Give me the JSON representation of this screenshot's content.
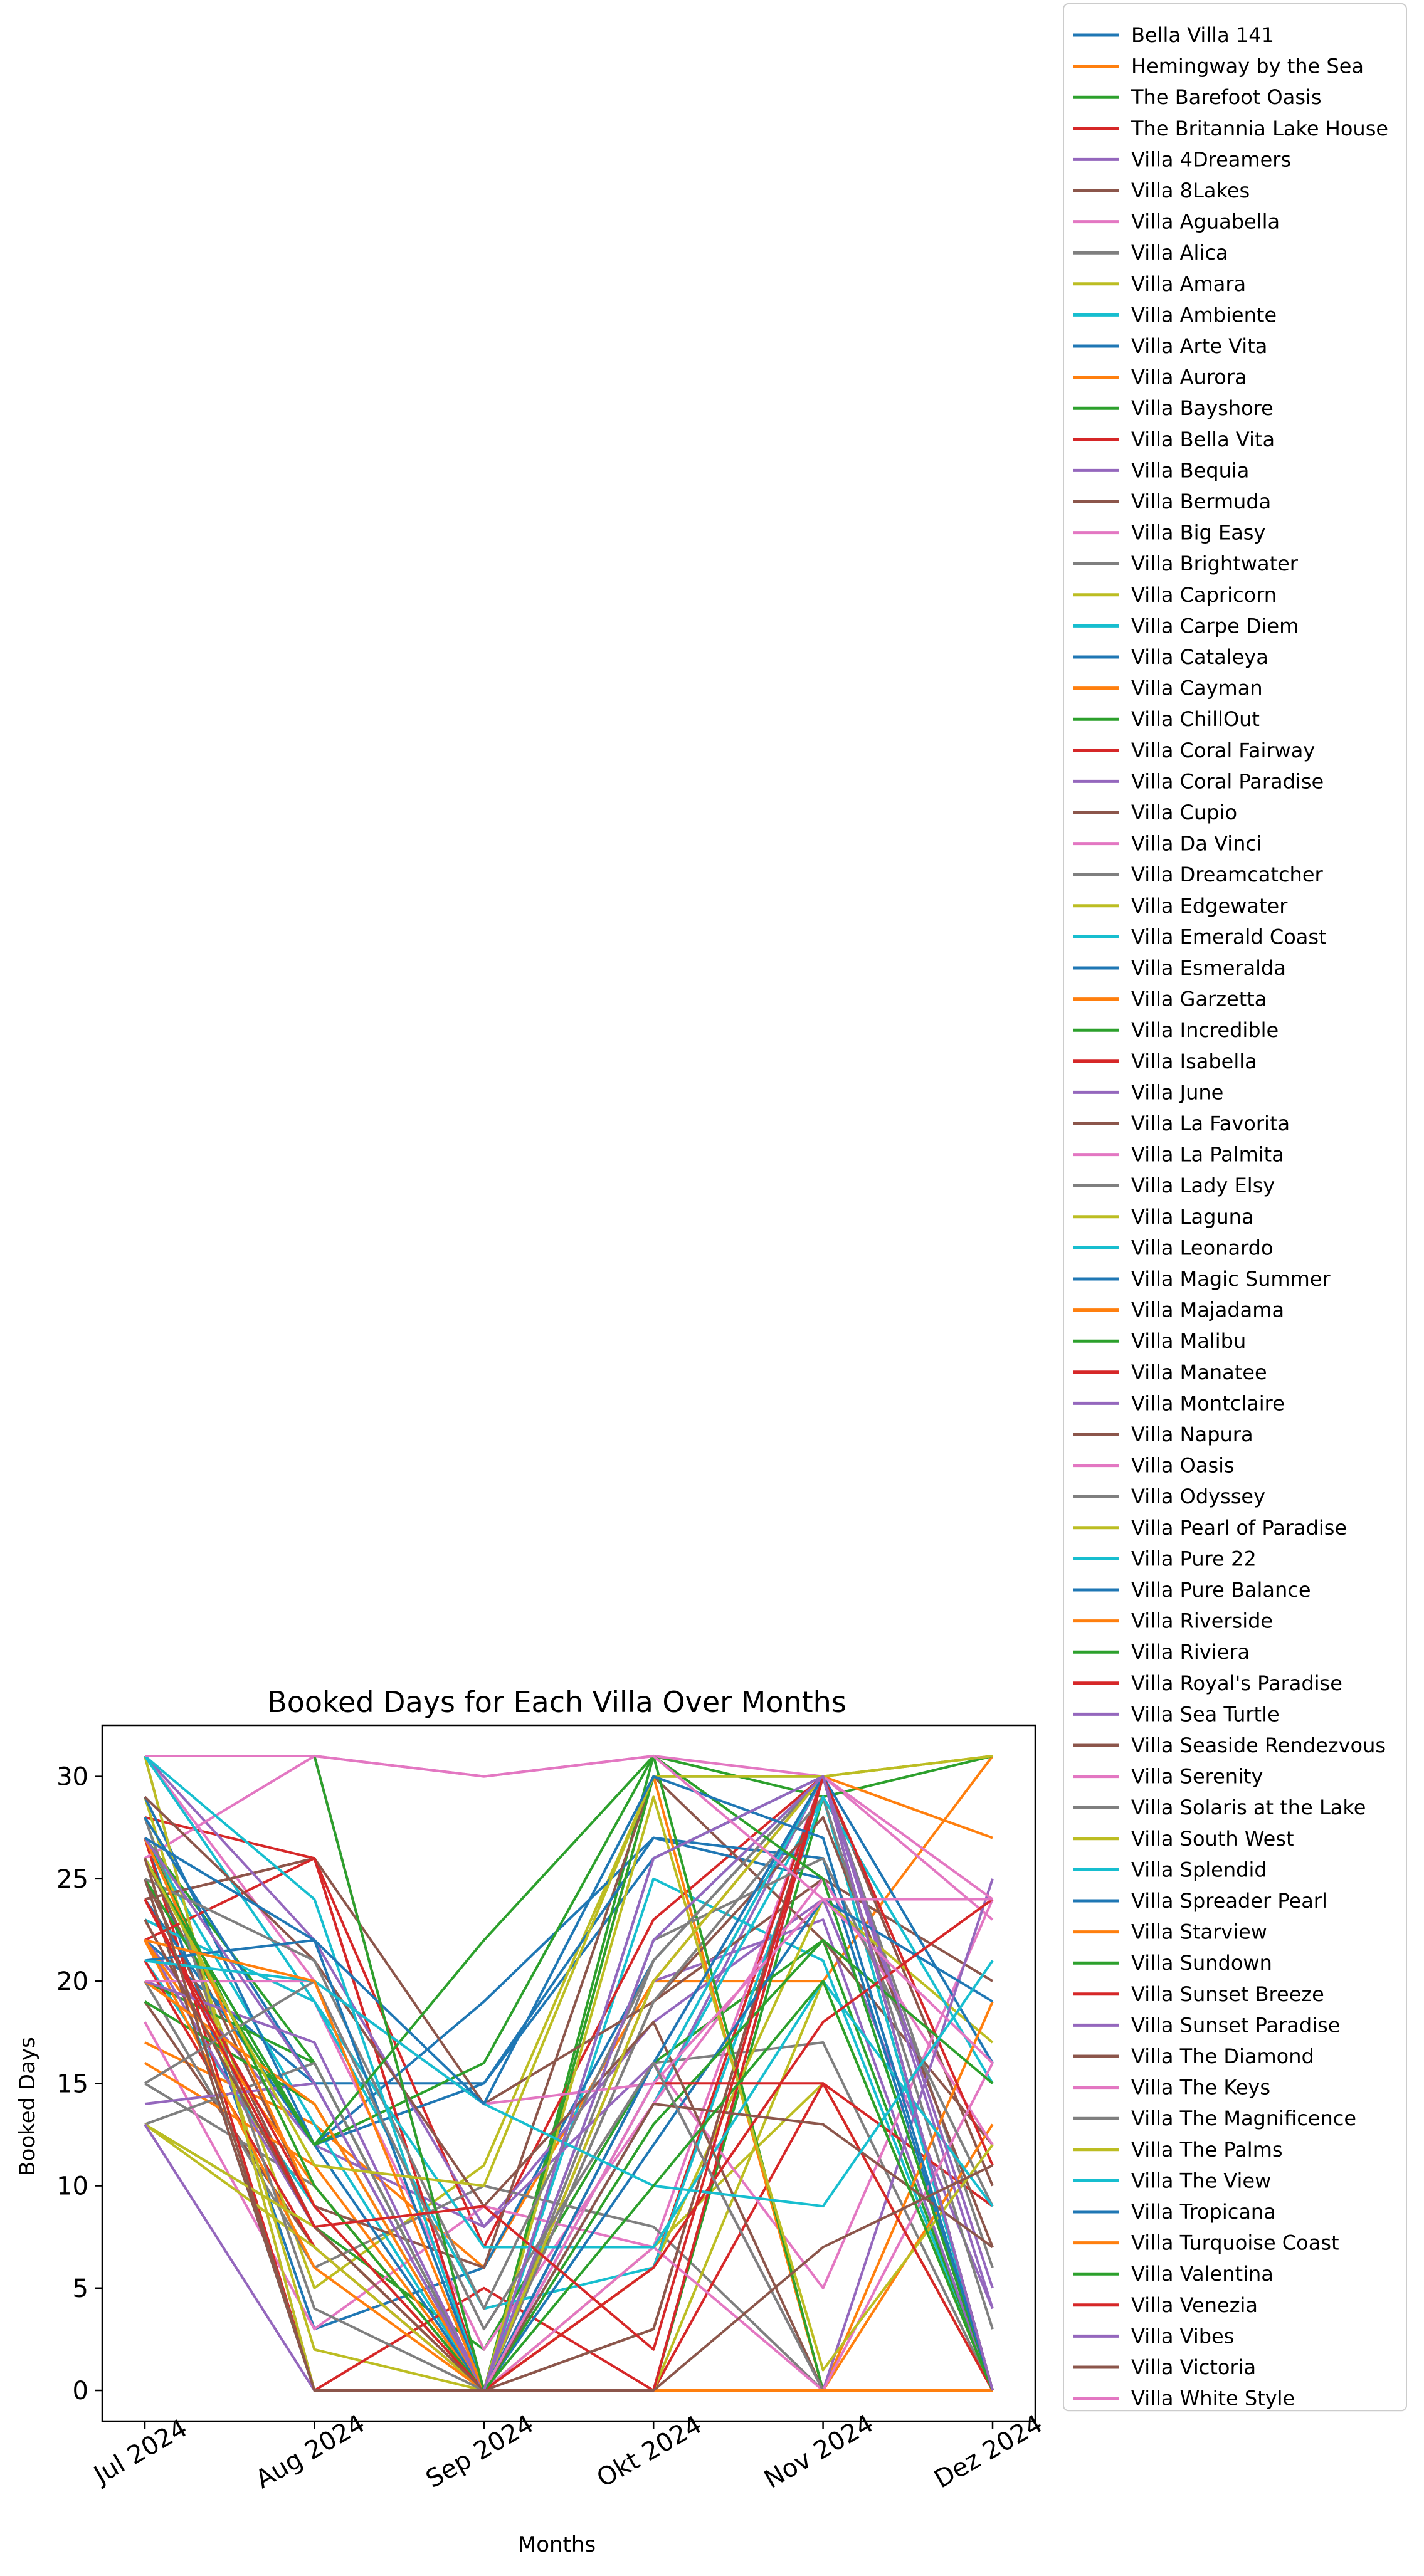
{
  "chart_data": {
    "type": "line",
    "title": "Booked Days for Each Villa Over Months",
    "xlabel": "Months",
    "ylabel": "Booked Days",
    "categories": [
      "Jul 2024",
      "Aug 2024",
      "Sep 2024",
      "Okt 2024",
      "Nov 2024",
      "Dez 2024"
    ],
    "ylim": [
      -1.5,
      32.5
    ],
    "yticks": [
      0,
      5,
      10,
      15,
      20,
      25,
      30
    ],
    "grid": false,
    "legend_placement": "outside right",
    "palette": [
      "#1f77b4",
      "#ff7f0e",
      "#2ca02c",
      "#d62728",
      "#9467bd",
      "#8c564b",
      "#e377c2",
      "#7f7f7f",
      "#bcbd22",
      "#17becf"
    ],
    "series": [
      {
        "name": "Bella Villa 141",
        "values": [
          22,
          15,
          15,
          26,
          30,
          0
        ]
      },
      {
        "name": "Hemingway by the Sea",
        "values": [
          17,
          13,
          6,
          20,
          20,
          31
        ]
      },
      {
        "name": "The Barefoot Oasis",
        "values": [
          27,
          16,
          0,
          31,
          29,
          0
        ]
      },
      {
        "name": "The Britannia Lake House",
        "values": [
          28,
          26,
          0,
          20,
          30,
          0
        ]
      },
      {
        "name": "Villa 4Dreamers",
        "values": [
          31,
          0,
          0,
          14,
          30,
          0
        ]
      },
      {
        "name": "Villa 8Lakes",
        "values": [
          19,
          7,
          0,
          3,
          30,
          10
        ]
      },
      {
        "name": "Villa Aguabella",
        "values": [
          31,
          31,
          30,
          31,
          30,
          23
        ]
      },
      {
        "name": "Villa Alica",
        "values": [
          15,
          10,
          0,
          16,
          17,
          0
        ]
      },
      {
        "name": "Villa Amara",
        "values": [
          28,
          5,
          11,
          30,
          30,
          31
        ]
      },
      {
        "name": "Villa Ambiente",
        "values": [
          21,
          9,
          0,
          25,
          21,
          0
        ]
      },
      {
        "name": "Villa Arte Vita",
        "values": [
          27,
          3,
          6,
          21,
          30,
          0
        ]
      },
      {
        "name": "Villa Aurora",
        "values": [
          23,
          8,
          0,
          0,
          0,
          0
        ]
      },
      {
        "name": "Villa Bayshore",
        "values": [
          13,
          8,
          2,
          16,
          22,
          0
        ]
      },
      {
        "name": "Villa Bella Vita",
        "values": [
          24,
          26,
          7,
          23,
          30,
          0
        ]
      },
      {
        "name": "Villa Bequia",
        "values": [
          22,
          12,
          8,
          18,
          24,
          4
        ]
      },
      {
        "name": "Villa Bermuda",
        "values": [
          25,
          8,
          0,
          19,
          25,
          20
        ]
      },
      {
        "name": "Villa Big Easy",
        "values": [
          18,
          3,
          9,
          7,
          30,
          0
        ]
      },
      {
        "name": "Villa Brightwater",
        "values": [
          20,
          6,
          10,
          8,
          0,
          0
        ]
      },
      {
        "name": "Villa Capricorn",
        "values": [
          29,
          2,
          0,
          7,
          15,
          0
        ]
      },
      {
        "name": "Villa Carpe Diem",
        "values": [
          27,
          13,
          0,
          22,
          30,
          0
        ]
      },
      {
        "name": "Villa Cataleya",
        "values": [
          26,
          12,
          19,
          27,
          25,
          0
        ]
      },
      {
        "name": "Villa Cayman",
        "values": [
          16,
          11,
          0,
          0,
          0,
          0
        ]
      },
      {
        "name": "Villa ChillOut",
        "values": [
          20,
          16,
          0,
          0,
          29,
          31
        ]
      },
      {
        "name": "Villa Coral Fairway",
        "values": [
          27,
          0,
          5,
          0,
          15,
          9
        ]
      },
      {
        "name": "Villa Coral Paradise",
        "values": [
          22,
          8,
          0,
          20,
          23,
          0
        ]
      },
      {
        "name": "Villa Cupio",
        "values": [
          26,
          9,
          6,
          30,
          22,
          12
        ]
      },
      {
        "name": "Villa Da Vinci",
        "values": [
          31,
          20,
          3,
          16,
          5,
          24
        ]
      },
      {
        "name": "Villa Dreamcatcher",
        "values": [
          13,
          16,
          0,
          21,
          30,
          6
        ]
      },
      {
        "name": "Villa Edgewater",
        "values": [
          26,
          0,
          0,
          0,
          20,
          0
        ]
      },
      {
        "name": "Villa Emerald Coast",
        "values": [
          25,
          0,
          0,
          14,
          29,
          0
        ]
      },
      {
        "name": "Villa Esmeralda",
        "values": [
          24,
          12,
          15,
          27,
          26,
          0
        ]
      },
      {
        "name": "Villa Garzetta",
        "values": [
          22,
          10,
          0,
          30,
          0,
          13
        ]
      },
      {
        "name": "Villa Incredible",
        "values": [
          19,
          14,
          0,
          30,
          30,
          0
        ]
      },
      {
        "name": "Villa Isabella",
        "values": [
          21,
          7,
          0,
          6,
          30,
          0
        ]
      },
      {
        "name": "Villa June",
        "values": [
          14,
          15,
          0,
          0,
          30,
          4
        ]
      },
      {
        "name": "Villa La Favorita",
        "values": [
          24,
          26,
          14,
          19,
          28,
          7
        ]
      },
      {
        "name": "Villa La Palmita",
        "values": [
          23,
          19,
          2,
          14,
          25,
          12
        ]
      },
      {
        "name": "Villa Lady Elsy",
        "values": [
          24,
          8,
          0,
          19,
          29,
          3
        ]
      },
      {
        "name": "Villa Laguna",
        "values": [
          13,
          7,
          0,
          6,
          24,
          17
        ]
      },
      {
        "name": "Villa Leonardo",
        "values": [
          23,
          19,
          4,
          6,
          29,
          15
        ]
      },
      {
        "name": "Villa Magic Summer",
        "values": [
          29,
          12,
          0,
          26,
          30,
          16
        ]
      },
      {
        "name": "Villa Majadama",
        "values": [
          22,
          6,
          0,
          0,
          0,
          19
        ]
      },
      {
        "name": "Villa Malibu",
        "values": [
          25,
          12,
          16,
          31,
          0,
          0
        ]
      },
      {
        "name": "Villa Manatee",
        "values": [
          22,
          26,
          0,
          0,
          30,
          11
        ]
      },
      {
        "name": "Villa Montclaire",
        "values": [
          31,
          22,
          8,
          16,
          0,
          25
        ]
      },
      {
        "name": "Villa Napura",
        "values": [
          25,
          0,
          0,
          3,
          30,
          0
        ]
      },
      {
        "name": "Villa Oasis",
        "values": [
          26,
          31,
          0,
          7,
          0,
          16
        ]
      },
      {
        "name": "Villa Odyssey",
        "values": [
          28,
          4,
          0,
          22,
          26,
          9
        ]
      },
      {
        "name": "Villa Pearl of Paradise",
        "values": [
          31,
          0,
          0,
          29,
          1,
          12
        ]
      },
      {
        "name": "Villa Pure 22",
        "values": [
          31,
          19,
          7,
          7,
          20,
          9
        ]
      },
      {
        "name": "Villa Pure Balance",
        "values": [
          28,
          15,
          0,
          12,
          24,
          19
        ]
      },
      {
        "name": "Villa Riverside",
        "values": [
          20,
          14,
          0,
          20,
          30,
          27
        ]
      },
      {
        "name": "Villa Riviera",
        "values": [
          27,
          10,
          0,
          13,
          22,
          15
        ]
      },
      {
        "name": "Villa Royal's Paradise",
        "values": [
          24,
          8,
          0,
          15,
          15,
          0
        ]
      },
      {
        "name": "Villa Sea Turtle",
        "values": [
          20,
          17,
          0,
          16,
          30,
          0
        ]
      },
      {
        "name": "Villa Seaside Rendezvous",
        "values": [
          29,
          21,
          9,
          18,
          0,
          0
        ]
      },
      {
        "name": "Villa Serenity",
        "values": [
          20,
          20,
          14,
          15,
          30,
          24
        ]
      },
      {
        "name": "Villa Solaris at the Lake",
        "values": [
          25,
          21,
          4,
          21,
          30,
          0
        ]
      },
      {
        "name": "Villa South West",
        "values": [
          13,
          8,
          0,
          20,
          30,
          31
        ]
      },
      {
        "name": "Villa Splendid",
        "values": [
          31,
          24,
          0,
          15,
          30,
          0
        ]
      },
      {
        "name": "Villa Spreader Pearl",
        "values": [
          21,
          22,
          0,
          16,
          30,
          0
        ]
      },
      {
        "name": "Villa Starview",
        "values": [
          27,
          9,
          0,
          0,
          0,
          0
        ]
      },
      {
        "name": "Villa Sundown",
        "values": [
          26,
          12,
          22,
          31,
          25,
          0
        ]
      },
      {
        "name": "Villa Sunset Breeze",
        "values": [
          24,
          9,
          0,
          6,
          18,
          24
        ]
      },
      {
        "name": "Villa Sunset Paradise",
        "values": [
          27,
          15,
          0,
          22,
          30,
          5
        ]
      },
      {
        "name": "Villa The Diamond",
        "values": [
          23,
          8,
          0,
          14,
          13,
          7
        ]
      },
      {
        "name": "Villa The Keys",
        "values": [
          31,
          31,
          0,
          15,
          24,
          16
        ]
      },
      {
        "name": "Villa The Magnificence",
        "values": [
          15,
          20,
          3,
          16,
          0,
          0
        ]
      },
      {
        "name": "Villa The Palms",
        "values": [
          26,
          11,
          10,
          30,
          30,
          31
        ]
      },
      {
        "name": "Villa The View",
        "values": [
          21,
          20,
          14,
          10,
          9,
          21
        ]
      },
      {
        "name": "Villa Tropicana",
        "values": [
          27,
          22,
          14,
          30,
          27,
          0
        ]
      },
      {
        "name": "Villa Turquoise Coast",
        "values": [
          22,
          20,
          0,
          0,
          0,
          0
        ]
      },
      {
        "name": "Villa Valentina",
        "values": [
          31,
          31,
          0,
          10,
          20,
          0
        ]
      },
      {
        "name": "Villa Venezia",
        "values": [
          24,
          8,
          9,
          2,
          30,
          0
        ]
      },
      {
        "name": "Villa Vibes",
        "values": [
          13,
          0,
          0,
          26,
          30,
          0
        ]
      },
      {
        "name": "Villa Victoria",
        "values": [
          26,
          0,
          0,
          0,
          7,
          11
        ]
      },
      {
        "name": "Villa White Style",
        "values": [
          31,
          31,
          30,
          31,
          24,
          24
        ]
      }
    ]
  }
}
